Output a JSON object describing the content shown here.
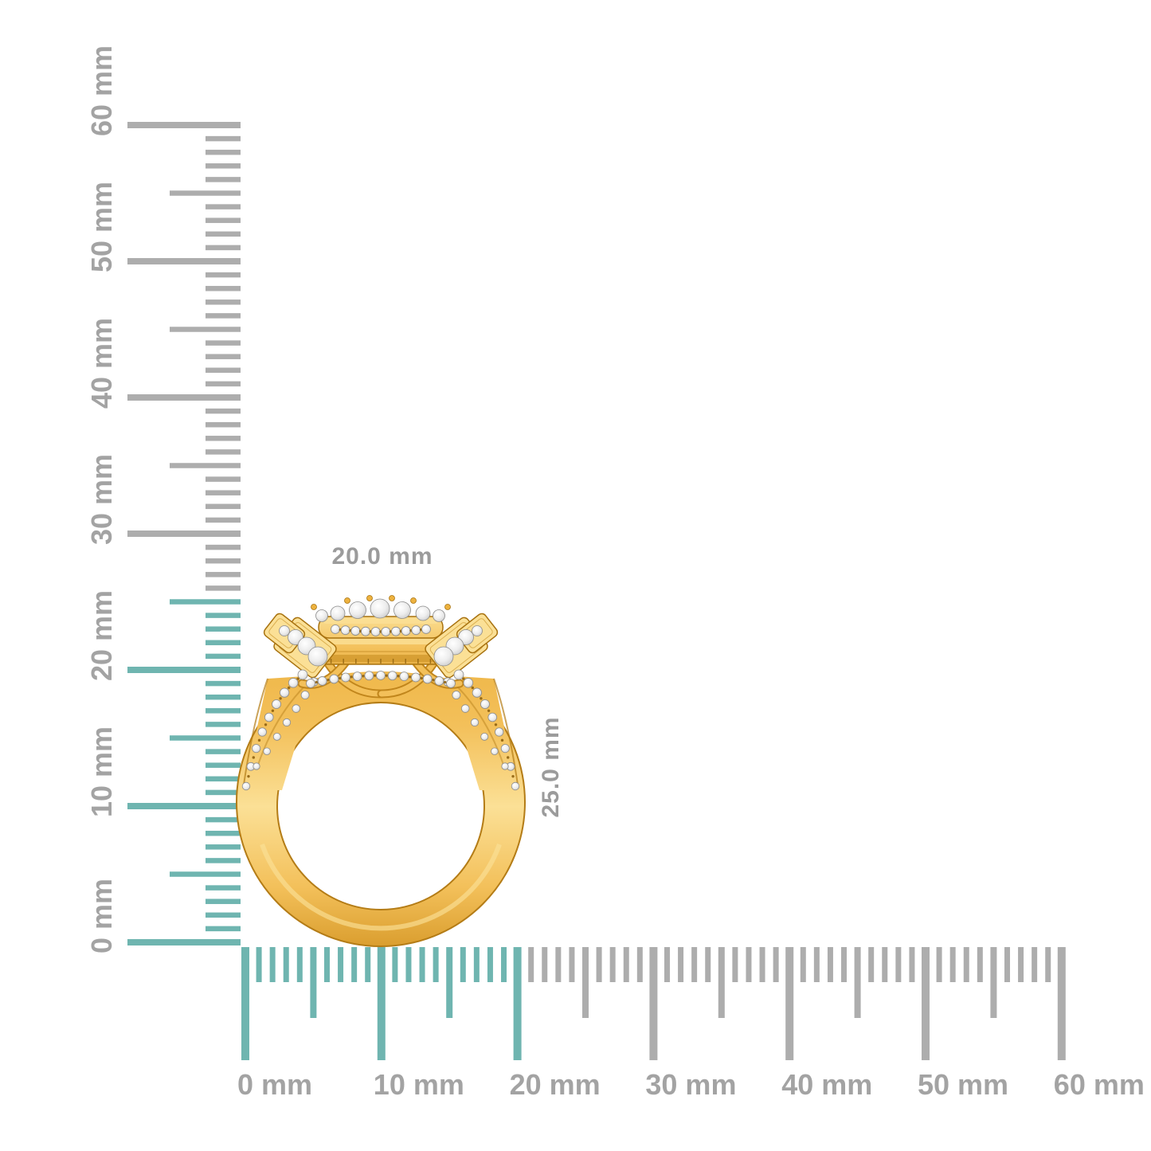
{
  "scene": {
    "background": "#FFFFFF",
    "description": "Yellow gold diamond halo ring profile shown against vertical and horizontal millimeter rulers"
  },
  "dimensions": {
    "width_label": "20.0 mm",
    "height_label": "25.0 mm",
    "label_color": "#9B9B9B"
  },
  "vertical_ruler": {
    "unit": "mm",
    "min_mm": 0,
    "max_mm": 60,
    "minor_step_mm": 1,
    "medium_step_mm": 5,
    "major_step_mm": 10,
    "highlight_to_mm": 25,
    "highlight_color": "#6FB5B0",
    "tick_color": "#ADADAD",
    "label_color": "#A3A3A3",
    "labels": [
      {
        "mm": 0,
        "text": "0 mm"
      },
      {
        "mm": 10,
        "text": "10 mm"
      },
      {
        "mm": 20,
        "text": "20 mm"
      },
      {
        "mm": 30,
        "text": "30 mm"
      },
      {
        "mm": 40,
        "text": "40 mm"
      },
      {
        "mm": 50,
        "text": "50 mm"
      },
      {
        "mm": 60,
        "text": "60 mm"
      }
    ]
  },
  "horizontal_ruler": {
    "unit": "mm",
    "min_mm": 0,
    "max_mm": 60,
    "minor_step_mm": 1,
    "medium_step_mm": 5,
    "major_step_mm": 10,
    "highlight_to_mm": 20,
    "highlight_color": "#6FB5B0",
    "tick_color": "#ADADAD",
    "label_color": "#A3A3A3",
    "labels": [
      {
        "mm": 0,
        "text": "0 mm"
      },
      {
        "mm": 10,
        "text": "10 mm"
      },
      {
        "mm": 20,
        "text": "20 mm"
      },
      {
        "mm": 30,
        "text": "30 mm"
      },
      {
        "mm": 40,
        "text": "40 mm"
      },
      {
        "mm": 50,
        "text": "50 mm"
      },
      {
        "mm": 60,
        "text": "60 mm"
      }
    ]
  },
  "ring": {
    "material": "yellow gold with round pave diamonds",
    "gold_light": "#FBE096",
    "gold_mid": "#F3C05A",
    "gold_mid2": "#EDB23F",
    "gold_deep": "#D89B2B",
    "gold_edge": "#B47C16",
    "gold_shadow": "#A8720F",
    "prong_color": "#8F6210",
    "diamond_center": "#FFFFFF",
    "diamond_mid": "#EDEDED",
    "diamond_edge": "#C9C9C9",
    "diamond_stroke": "#8C8C8C"
  }
}
